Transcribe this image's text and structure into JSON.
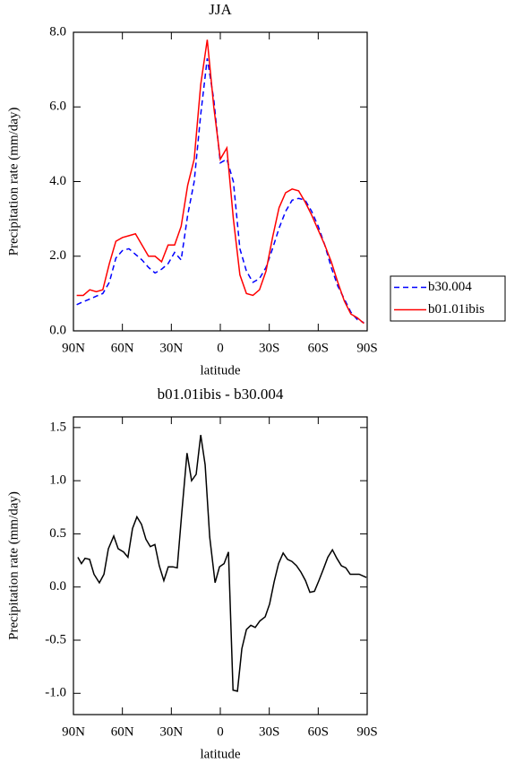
{
  "chart_data": [
    {
      "type": "line",
      "title": "JJA",
      "xlabel": "latitude",
      "ylabel": "Precipitation rate (mm/day)",
      "x": [
        88,
        84,
        80,
        76,
        72,
        68,
        64,
        60,
        56,
        52,
        48,
        44,
        40,
        36,
        32,
        28,
        24,
        20,
        16,
        12,
        8,
        4,
        0,
        -4,
        -8,
        -12,
        -16,
        -20,
        -24,
        -28,
        -32,
        -36,
        -40,
        -44,
        -48,
        -52,
        -56,
        -60,
        -64,
        -68,
        -72,
        -76,
        -80,
        -84,
        -88
      ],
      "series": [
        {
          "name": "b30.004",
          "color": "#0000ff",
          "dash": true,
          "values": [
            0.7,
            0.78,
            0.85,
            0.93,
            1.0,
            1.3,
            1.95,
            2.15,
            2.2,
            2.05,
            1.9,
            1.7,
            1.55,
            1.65,
            1.8,
            2.1,
            1.9,
            3.1,
            4.0,
            5.8,
            7.3,
            6.2,
            4.5,
            4.6,
            4.0,
            2.2,
            1.6,
            1.3,
            1.4,
            1.7,
            2.2,
            2.75,
            3.2,
            3.5,
            3.55,
            3.5,
            3.2,
            2.8,
            2.3,
            1.7,
            1.2,
            0.85,
            0.5,
            0.3,
            0.22
          ]
        },
        {
          "name": "b01.01ibis",
          "color": "#ff0000",
          "dash": false,
          "values": [
            0.95,
            0.95,
            1.1,
            1.05,
            1.1,
            1.8,
            2.4,
            2.5,
            2.55,
            2.6,
            2.3,
            2.0,
            2.0,
            1.85,
            2.3,
            2.3,
            2.8,
            3.9,
            4.6,
            6.6,
            7.8,
            6.0,
            4.6,
            4.9,
            3.0,
            1.5,
            1.0,
            0.95,
            1.1,
            1.6,
            2.5,
            3.3,
            3.7,
            3.8,
            3.75,
            3.45,
            3.1,
            2.7,
            2.3,
            1.85,
            1.3,
            0.8,
            0.45,
            0.35,
            0.2
          ]
        }
      ],
      "xlim": [
        90,
        -90
      ],
      "xticks": [
        {
          "value": 90,
          "label": "90N"
        },
        {
          "value": 60,
          "label": "60N"
        },
        {
          "value": 30,
          "label": "30N"
        },
        0,
        {
          "value": -30,
          "label": "30S"
        },
        {
          "value": -60,
          "label": "60S"
        },
        {
          "value": -90,
          "label": "90S"
        }
      ],
      "ylim": [
        0,
        8
      ],
      "yticks": [
        {
          "value": 0,
          "label": "0.0"
        },
        {
          "value": 2,
          "label": "2.0"
        },
        {
          "value": 4,
          "label": "4.0"
        },
        {
          "value": 6,
          "label": "6.0"
        },
        {
          "value": 8,
          "label": "8.0"
        }
      ],
      "legend": "right"
    },
    {
      "type": "line",
      "title": "b01.01ibis - b30.004",
      "xlabel": "latitude",
      "ylabel": "Precipitation rate (mm/day)",
      "x": [
        87.3,
        85.1,
        82.9,
        80.1,
        77.4,
        74.1,
        71.3,
        68.6,
        65.3,
        62.6,
        59.3,
        56.6,
        53.8,
        51.1,
        48.3,
        45.6,
        42.9,
        40.1,
        37.4,
        34.6,
        31.9,
        29.1,
        26.4,
        23.6,
        20.4,
        17.6,
        14.8,
        12.0,
        9.3,
        6.5,
        3.2,
        0.5,
        -2.3,
        -5.0,
        -7.8,
        -10.5,
        -13.2,
        -16.0,
        -18.7,
        -21.4,
        -24.2,
        -27.5,
        -30.2,
        -33.0,
        -35.7,
        -38.5,
        -41.2,
        -43.9,
        -46.7,
        -49.4,
        -52.2,
        -54.9,
        -57.7,
        -60.4,
        -63.2,
        -65.9,
        -68.7,
        -71.4,
        -74.2,
        -76.9,
        -79.6,
        -82.4,
        -85.1,
        -89.5
      ],
      "series": [
        {
          "color": "#000000",
          "dash": false,
          "values": [
            0.28,
            0.22,
            0.27,
            0.26,
            0.12,
            0.04,
            0.12,
            0.36,
            0.48,
            0.36,
            0.33,
            0.28,
            0.55,
            0.66,
            0.59,
            0.45,
            0.38,
            0.4,
            0.2,
            0.06,
            0.19,
            0.19,
            0.18,
            0.7,
            1.26,
            1.0,
            1.06,
            1.43,
            1.15,
            0.47,
            0.04,
            0.19,
            0.22,
            0.33,
            -0.97,
            -0.98,
            -0.58,
            -0.4,
            -0.36,
            -0.38,
            -0.32,
            -0.28,
            -0.16,
            0.05,
            0.22,
            0.32,
            0.26,
            0.24,
            0.2,
            0.14,
            0.06,
            -0.05,
            -0.04,
            0.06,
            0.17,
            0.28,
            0.35,
            0.27,
            0.2,
            0.18,
            0.12,
            0.12,
            0.12,
            0.09
          ]
        }
      ],
      "xlim": [
        90,
        -90
      ],
      "xticks": [
        {
          "value": 90,
          "label": "90N"
        },
        {
          "value": 60,
          "label": "60N"
        },
        {
          "value": 30,
          "label": "30N"
        },
        0,
        {
          "value": -30,
          "label": "30S"
        },
        {
          "value": -60,
          "label": "60S"
        },
        {
          "value": -90,
          "label": "90S"
        }
      ],
      "ylim": [
        -1.2,
        1.6
      ],
      "yticks": [
        {
          "value": -1,
          "label": "-1.0"
        },
        {
          "value": -0.5,
          "label": "-0.5"
        },
        {
          "value": 0,
          "label": "0.0"
        },
        {
          "value": 0.5,
          "label": "0.5"
        },
        {
          "value": 1,
          "label": "1.0"
        },
        {
          "value": 1.5,
          "label": "1.5"
        }
      ]
    }
  ]
}
